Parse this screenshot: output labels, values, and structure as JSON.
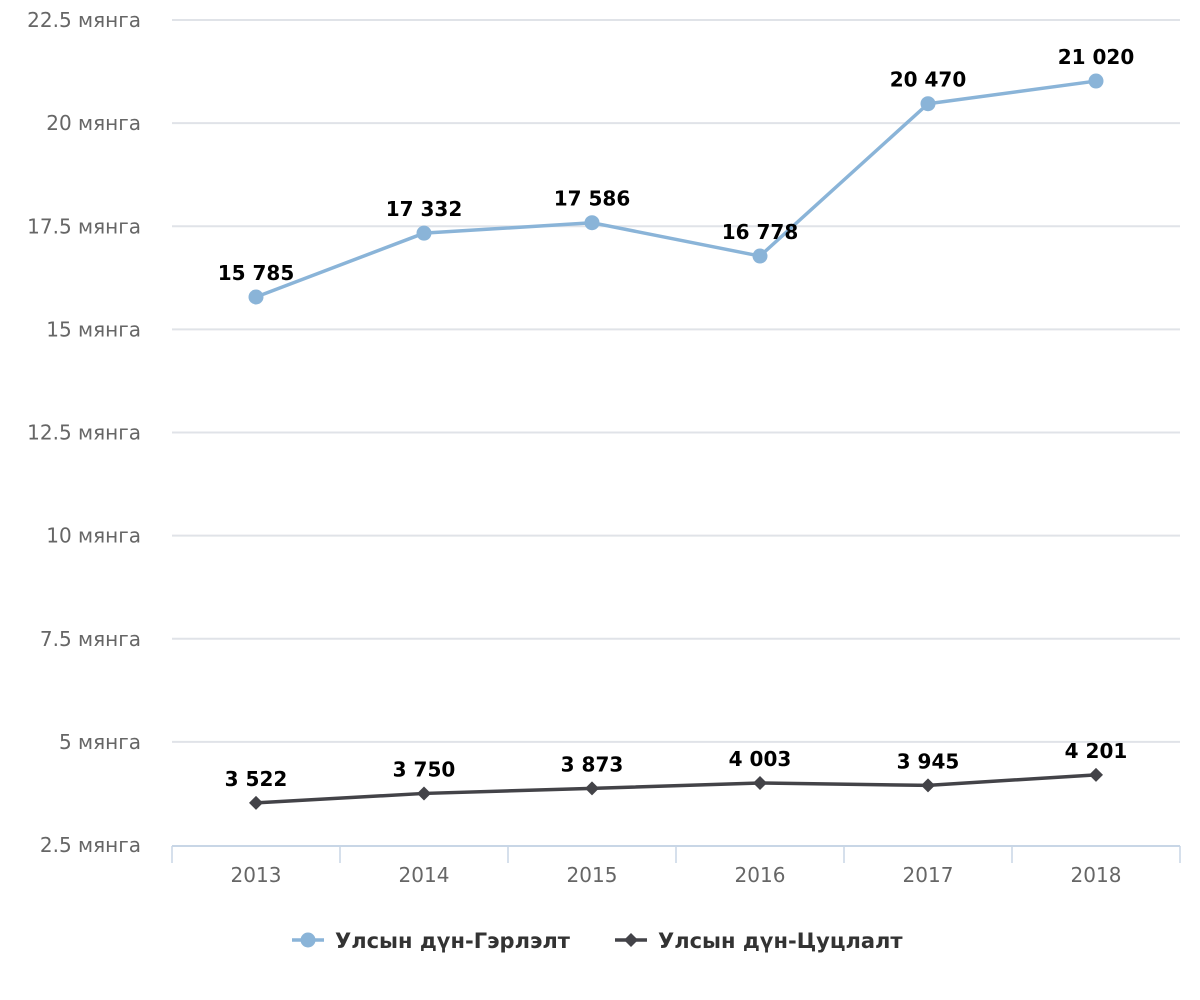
{
  "chart_data": {
    "type": "line",
    "title": "",
    "xlabel": "",
    "ylabel": "",
    "categories": [
      "2013",
      "2014",
      "2015",
      "2016",
      "2017",
      "2018"
    ],
    "y_ticks": [
      {
        "value": 2500,
        "label": "2.5 мянга"
      },
      {
        "value": 5000,
        "label": "5 мянга"
      },
      {
        "value": 7500,
        "label": "7.5 мянга"
      },
      {
        "value": 10000,
        "label": "10 мянга"
      },
      {
        "value": 12500,
        "label": "12.5 мянга"
      },
      {
        "value": 15000,
        "label": "15 мянга"
      },
      {
        "value": 17500,
        "label": "17.5 мянга"
      },
      {
        "value": 20000,
        "label": "20 мянга"
      },
      {
        "value": 22500,
        "label": "22.5 мянга"
      }
    ],
    "ylim": [
      2500,
      22500
    ],
    "grid": true,
    "legend_position": "bottom",
    "series": [
      {
        "name": "Улсын дүн-Гэрлэлт",
        "color": "#8ab4d8",
        "marker": "circle",
        "values": [
          15785,
          17332,
          17586,
          16778,
          20470,
          21020
        ],
        "labels": [
          "15 785",
          "17 332",
          "17 586",
          "16 778",
          "20 470",
          "21 020"
        ]
      },
      {
        "name": "Улсын дүн-Цуцлалт",
        "color": "#434348",
        "marker": "diamond",
        "values": [
          3522,
          3750,
          3873,
          4003,
          3945,
          4201
        ],
        "labels": [
          "3 522",
          "3 750",
          "3 873",
          "4 003",
          "3 945",
          "4 201"
        ]
      }
    ]
  }
}
